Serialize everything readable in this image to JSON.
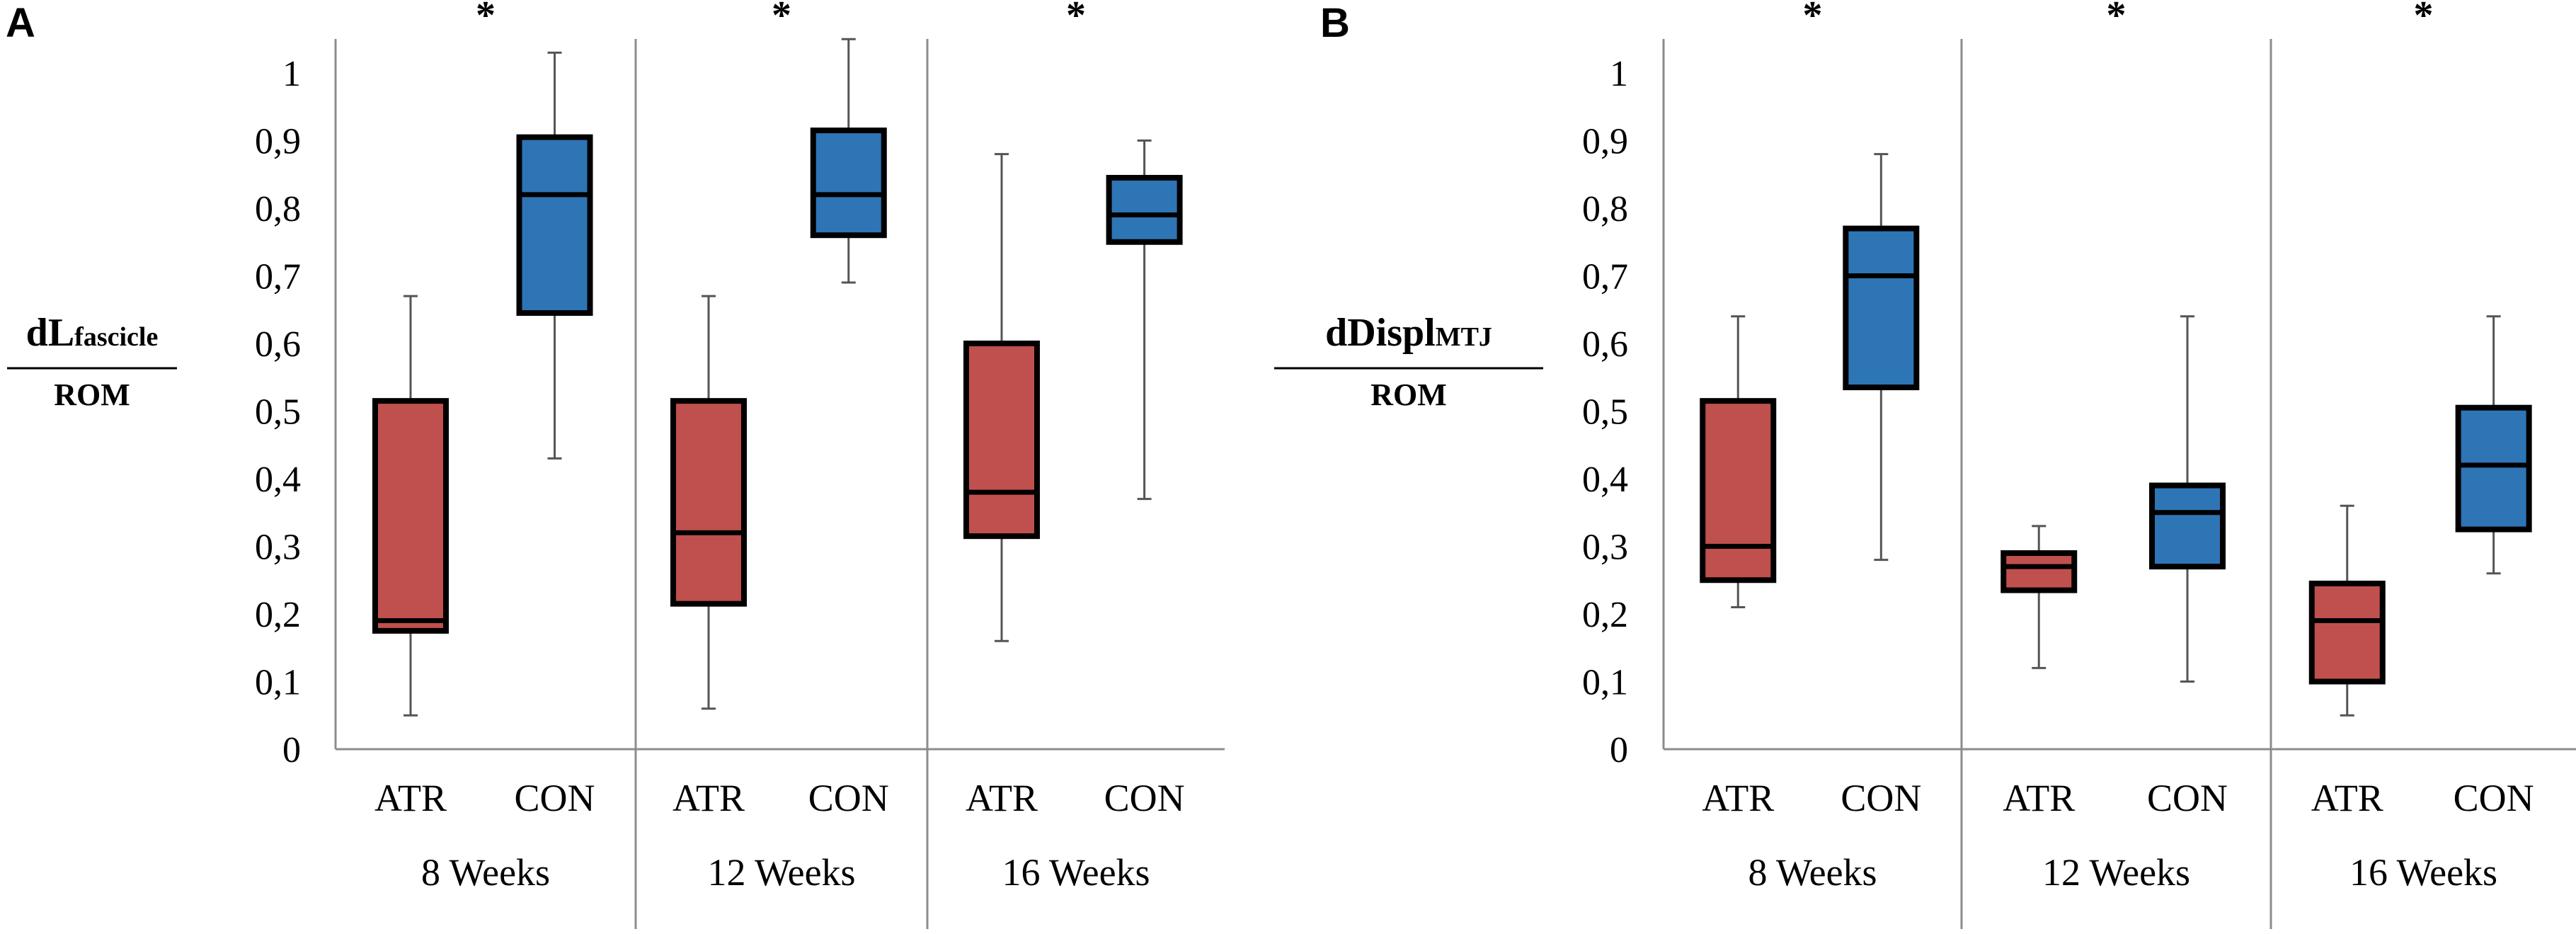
{
  "colors": {
    "ATR": "#c0504d",
    "CON": "#2e75b6",
    "outline": "#000000",
    "axis": "#8c8c8c"
  },
  "chart_data": [
    {
      "type": "box",
      "panel_label": "A",
      "ylabel_main": "dL",
      "ylabel_sub": "fascicle",
      "ylabel_denominator": "ROM",
      "ylim": [
        0,
        1
      ],
      "yticks": [
        "0",
        "0,1",
        "0,2",
        "0,3",
        "0,4",
        "0,5",
        "0,6",
        "0,7",
        "0,8",
        "0,9",
        "1"
      ],
      "significance_marker": "*",
      "groups": [
        {
          "label": "8 Weeks",
          "boxes": [
            {
              "category": "ATR",
              "whisker_low": 0.05,
              "q1": 0.175,
              "median": 0.19,
              "q3": 0.515,
              "whisker_high": 0.67
            },
            {
              "category": "CON",
              "whisker_low": 0.43,
              "q1": 0.645,
              "median": 0.82,
              "q3": 0.905,
              "whisker_high": 1.03
            }
          ]
        },
        {
          "label": "12 Weeks",
          "boxes": [
            {
              "category": "ATR",
              "whisker_low": 0.06,
              "q1": 0.215,
              "median": 0.32,
              "q3": 0.515,
              "whisker_high": 0.67
            },
            {
              "category": "CON",
              "whisker_low": 0.69,
              "q1": 0.76,
              "median": 0.82,
              "q3": 0.915,
              "whisker_high": 1.05
            }
          ]
        },
        {
          "label": "16 Weeks",
          "boxes": [
            {
              "category": "ATR",
              "whisker_low": 0.16,
              "q1": 0.315,
              "median": 0.38,
              "q3": 0.6,
              "whisker_high": 0.88
            },
            {
              "category": "CON",
              "whisker_low": 0.37,
              "q1": 0.75,
              "median": 0.79,
              "q3": 0.845,
              "whisker_high": 0.9
            }
          ]
        }
      ]
    },
    {
      "type": "box",
      "panel_label": "B",
      "ylabel_main": "dDispl",
      "ylabel_sub": "MTJ",
      "ylabel_denominator": "ROM",
      "ylim": [
        0,
        1
      ],
      "yticks": [
        "0",
        "0,1",
        "0,2",
        "0,3",
        "0,4",
        "0,5",
        "0,6",
        "0,7",
        "0,8",
        "0,9",
        "1"
      ],
      "significance_marker": "*",
      "groups": [
        {
          "label": "8 Weeks",
          "boxes": [
            {
              "category": "ATR",
              "whisker_low": 0.21,
              "q1": 0.25,
              "median": 0.3,
              "q3": 0.515,
              "whisker_high": 0.64
            },
            {
              "category": "CON",
              "whisker_low": 0.28,
              "q1": 0.535,
              "median": 0.7,
              "q3": 0.77,
              "whisker_high": 0.88
            }
          ]
        },
        {
          "label": "12 Weeks",
          "boxes": [
            {
              "category": "ATR",
              "whisker_low": 0.12,
              "q1": 0.235,
              "median": 0.27,
              "q3": 0.29,
              "whisker_high": 0.33
            },
            {
              "category": "CON",
              "whisker_low": 0.1,
              "q1": 0.27,
              "median": 0.35,
              "q3": 0.39,
              "whisker_high": 0.64
            }
          ]
        },
        {
          "label": "16 Weeks",
          "boxes": [
            {
              "category": "ATR",
              "whisker_low": 0.05,
              "q1": 0.1,
              "median": 0.19,
              "q3": 0.245,
              "whisker_high": 0.36
            },
            {
              "category": "CON",
              "whisker_low": 0.26,
              "q1": 0.325,
              "median": 0.42,
              "q3": 0.505,
              "whisker_high": 0.64
            }
          ]
        }
      ]
    }
  ]
}
